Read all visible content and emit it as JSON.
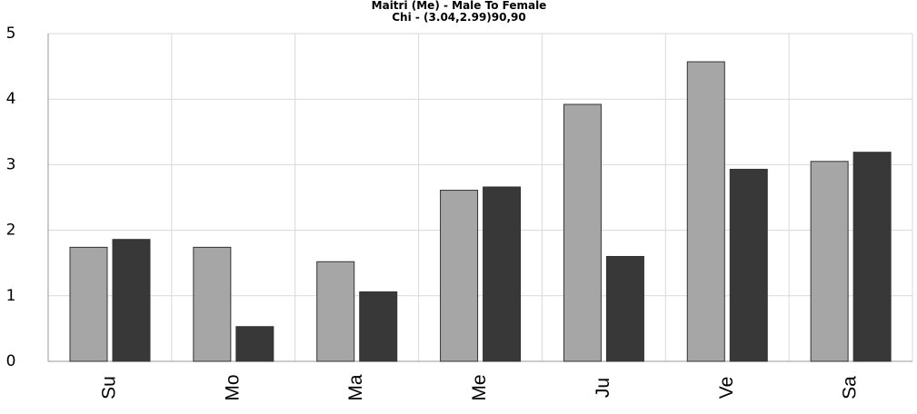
{
  "chart_data": {
    "type": "bar",
    "title": "Maitri (Me) - Male To Female",
    "subtitle": "Chi - (3.04,2.99)90,90",
    "categories": [
      "Su",
      "Mo",
      "Ma",
      "Me",
      "Ju",
      "Ve",
      "Sa"
    ],
    "series": [
      {
        "color": "#a6a6a6",
        "values": [
          1.74,
          1.74,
          1.52,
          2.61,
          3.92,
          4.57,
          3.05
        ]
      },
      {
        "color": "#383838",
        "values": [
          1.86,
          0.53,
          1.06,
          2.66,
          1.6,
          2.93,
          3.19
        ]
      }
    ],
    "ylim": [
      0,
      5
    ],
    "yticks": [
      0,
      1,
      2,
      3,
      4,
      5
    ],
    "grid": true
  }
}
